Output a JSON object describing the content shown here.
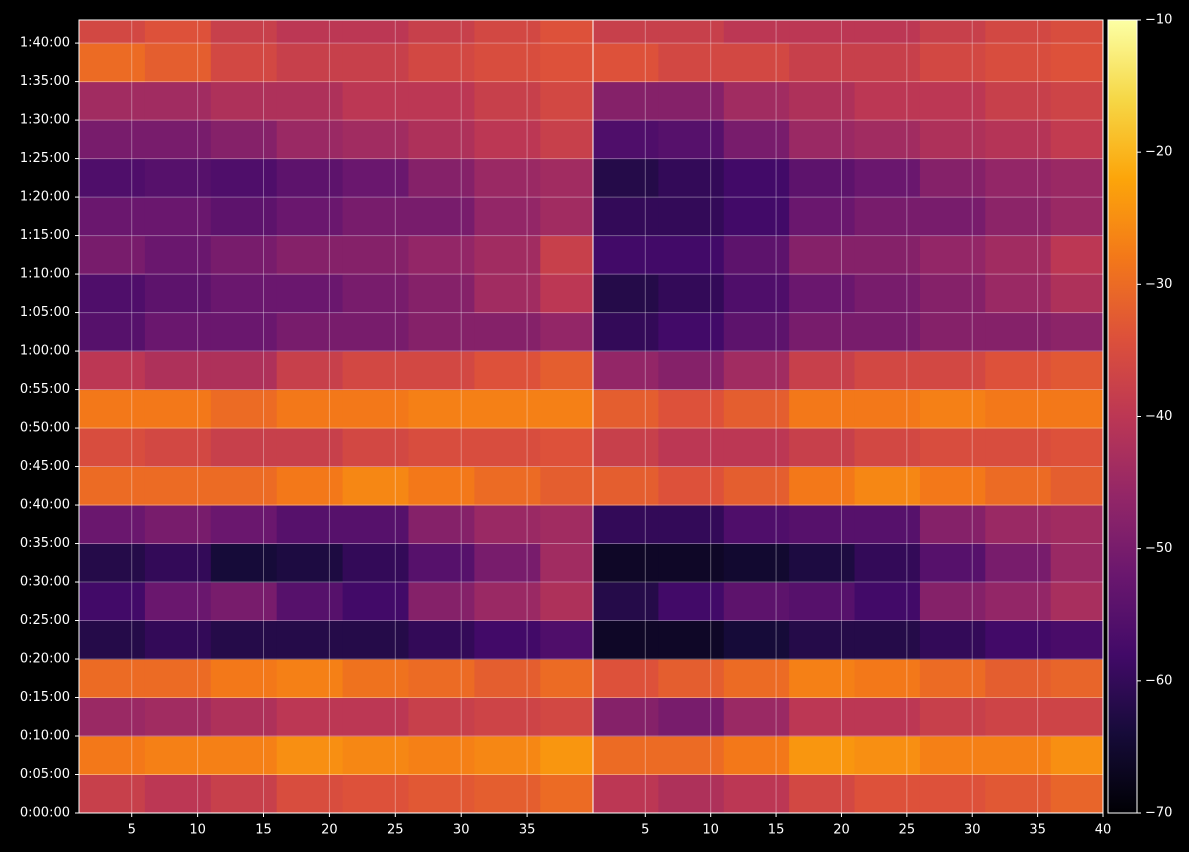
{
  "chart_data": [
    {
      "type": "heatmap",
      "colormap": "inferno",
      "grid": true,
      "x": [
        3.5,
        8.5,
        13.5,
        18.5,
        23.5,
        28.5,
        33.5,
        38.5
      ],
      "y": [
        150,
        450,
        750,
        1050,
        1350,
        1650,
        1950,
        2250,
        2550,
        2850,
        3150,
        3450,
        3750,
        4050,
        4350,
        4650,
        4950,
        5250,
        5550,
        5850,
        6150
      ],
      "values": [
        [
          -38,
          -40,
          -38,
          -35,
          -34,
          -33,
          -32,
          -30
        ],
        [
          -28,
          -27,
          -27,
          -25,
          -26,
          -27,
          -26,
          -24
        ],
        [
          -45,
          -44,
          -42,
          -40,
          -40,
          -38,
          -37,
          -36
        ],
        [
          -30,
          -30,
          -28,
          -27,
          -29,
          -30,
          -32,
          -30
        ],
        [
          -62,
          -60,
          -62,
          -62,
          -62,
          -60,
          -58,
          -56
        ],
        [
          -58,
          -52,
          -50,
          -55,
          -58,
          -48,
          -45,
          -42
        ],
        [
          -62,
          -60,
          -64,
          -63,
          -60,
          -55,
          -50,
          -44
        ],
        [
          -52,
          -50,
          -52,
          -55,
          -55,
          -48,
          -45,
          -44
        ],
        [
          -30,
          -30,
          -30,
          -28,
          -26,
          -28,
          -30,
          -32
        ],
        [
          -35,
          -36,
          -38,
          -38,
          -36,
          -35,
          -35,
          -34
        ],
        [
          -28,
          -28,
          -30,
          -28,
          -28,
          -27,
          -27,
          -27
        ],
        [
          -40,
          -42,
          -42,
          -38,
          -36,
          -36,
          -34,
          -32
        ],
        [
          -55,
          -52,
          -52,
          -50,
          -50,
          -48,
          -48,
          -46
        ],
        [
          -56,
          -54,
          -52,
          -52,
          -50,
          -48,
          -44,
          -40
        ],
        [
          -50,
          -52,
          -50,
          -48,
          -48,
          -46,
          -44,
          -38
        ],
        [
          -52,
          -52,
          -54,
          -52,
          -50,
          -50,
          -46,
          -44
        ],
        [
          -56,
          -55,
          -56,
          -54,
          -52,
          -48,
          -45,
          -44
        ],
        [
          -50,
          -50,
          -48,
          -45,
          -44,
          -42,
          -40,
          -38
        ],
        [
          -44,
          -44,
          -42,
          -42,
          -40,
          -40,
          -38,
          -36
        ],
        [
          -30,
          -32,
          -36,
          -38,
          -38,
          -36,
          -35,
          -34
        ],
        [
          -36,
          -34,
          -38,
          -40,
          -40,
          -38,
          -36,
          -34
        ]
      ],
      "xlim": [
        1,
        40
      ],
      "xticks": [
        5,
        10,
        15,
        20,
        25,
        30,
        35
      ],
      "ylim": [
        0,
        6180
      ],
      "yticks": [
        {
          "value": 0,
          "label": "0:00:00"
        },
        {
          "value": 300,
          "label": "0:05:00"
        },
        {
          "value": 600,
          "label": "0:10:00"
        },
        {
          "value": 900,
          "label": "0:15:00"
        },
        {
          "value": 1200,
          "label": "0:20:00"
        },
        {
          "value": 1500,
          "label": "0:25:00"
        },
        {
          "value": 1800,
          "label": "0:30:00"
        },
        {
          "value": 2100,
          "label": "0:35:00"
        },
        {
          "value": 2400,
          "label": "0:40:00"
        },
        {
          "value": 2700,
          "label": "0:45:00"
        },
        {
          "value": 3000,
          "label": "0:50:00"
        },
        {
          "value": 3300,
          "label": "0:55:00"
        },
        {
          "value": 3600,
          "label": "1:00:00"
        },
        {
          "value": 3900,
          "label": "1:05:00"
        },
        {
          "value": 4200,
          "label": "1:10:00"
        },
        {
          "value": 4500,
          "label": "1:15:00"
        },
        {
          "value": 4800,
          "label": "1:20:00"
        },
        {
          "value": 5100,
          "label": "1:25:00"
        },
        {
          "value": 5400,
          "label": "1:30:00"
        },
        {
          "value": 5700,
          "label": "1:35:00"
        },
        {
          "value": 6000,
          "label": "1:40:00"
        }
      ]
    },
    {
      "type": "heatmap",
      "colormap": "inferno",
      "grid": true,
      "x": [
        3.5,
        8.5,
        13.5,
        18.5,
        23.5,
        28.5,
        33.5,
        38.5
      ],
      "values": [
        [
          -40,
          -42,
          -40,
          -36,
          -34,
          -34,
          -33,
          -31
        ],
        [
          -30,
          -30,
          -28,
          -24,
          -25,
          -27,
          -27,
          -25
        ],
        [
          -48,
          -50,
          -45,
          -40,
          -40,
          -38,
          -37,
          -37
        ],
        [
          -34,
          -32,
          -30,
          -27,
          -28,
          -30,
          -32,
          -31
        ],
        [
          -66,
          -66,
          -64,
          -62,
          -62,
          -60,
          -58,
          -57
        ],
        [
          -62,
          -58,
          -54,
          -55,
          -58,
          -48,
          -46,
          -43
        ],
        [
          -66,
          -66,
          -65,
          -63,
          -60,
          -55,
          -50,
          -45
        ],
        [
          -60,
          -60,
          -56,
          -55,
          -55,
          -48,
          -45,
          -44
        ],
        [
          -32,
          -34,
          -32,
          -28,
          -26,
          -28,
          -30,
          -32
        ],
        [
          -38,
          -40,
          -40,
          -38,
          -36,
          -35,
          -35,
          -34
        ],
        [
          -32,
          -34,
          -32,
          -28,
          -28,
          -27,
          -28,
          -28
        ],
        [
          -46,
          -48,
          -44,
          -38,
          -36,
          -36,
          -34,
          -33
        ],
        [
          -60,
          -58,
          -54,
          -50,
          -50,
          -48,
          -48,
          -47
        ],
        [
          -62,
          -60,
          -56,
          -52,
          -50,
          -48,
          -45,
          -42
        ],
        [
          -58,
          -58,
          -54,
          -48,
          -48,
          -46,
          -44,
          -40
        ],
        [
          -60,
          -60,
          -58,
          -52,
          -50,
          -50,
          -47,
          -45
        ],
        [
          -62,
          -60,
          -58,
          -54,
          -52,
          -48,
          -46,
          -45
        ],
        [
          -56,
          -55,
          -50,
          -45,
          -44,
          -42,
          -41,
          -39
        ],
        [
          -48,
          -48,
          -44,
          -42,
          -40,
          -40,
          -38,
          -37
        ],
        [
          -34,
          -36,
          -36,
          -38,
          -38,
          -36,
          -35,
          -34
        ],
        [
          -38,
          -38,
          -40,
          -40,
          -40,
          -38,
          -36,
          -35
        ]
      ],
      "xlim": [
        1,
        40
      ],
      "xticks": [
        5,
        10,
        15,
        20,
        25,
        30,
        35,
        40
      ],
      "colorbar": {
        "lim": [
          -70,
          -10
        ],
        "ticks": [
          {
            "value": -10,
            "label": "−10"
          },
          {
            "value": -20,
            "label": "−20"
          },
          {
            "value": -30,
            "label": "−30"
          },
          {
            "value": -40,
            "label": "−40"
          },
          {
            "value": -50,
            "label": "−50"
          },
          {
            "value": -60,
            "label": "−60"
          },
          {
            "value": -70,
            "label": "−70"
          }
        ]
      }
    }
  ]
}
